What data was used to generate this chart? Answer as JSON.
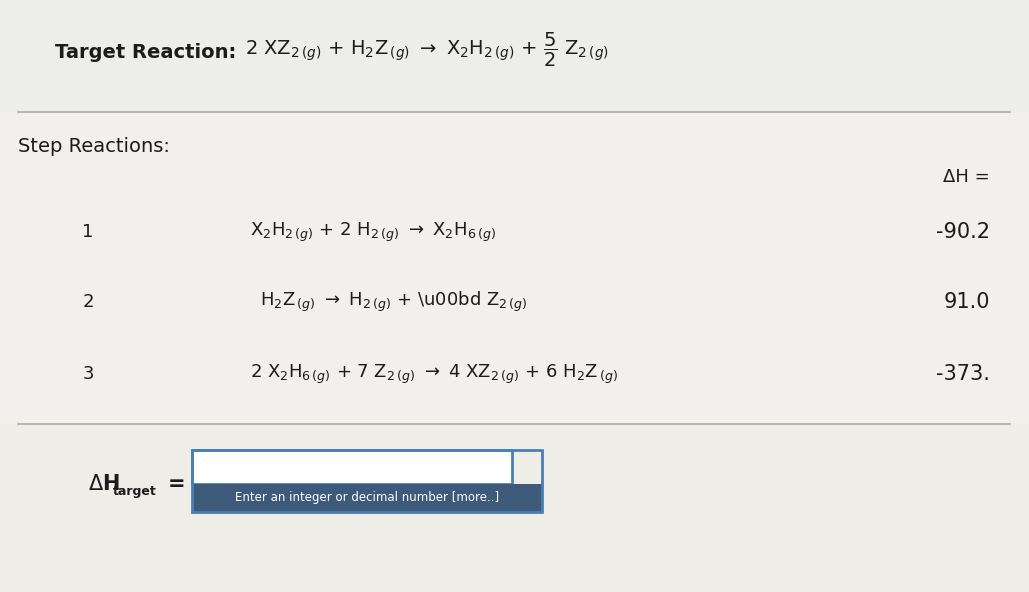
{
  "bg_color": "#e8e7e0",
  "panel_color": "#f0eeea",
  "title_label": "Target Reaction:",
  "step_label": "Step Reactions:",
  "dh_label": "ΔH =",
  "steps": [
    {
      "num": "1",
      "dh": "-90.2"
    },
    {
      "num": "2",
      "dh": "91.0"
    },
    {
      "num": "3",
      "dh": "-373."
    }
  ],
  "dh_target_label": "ΔH",
  "dh_target_sub": "target",
  "dh_target_eq": " =",
  "input_placeholder": "Enter an integer or decimal number [more..]",
  "text_color": "#1c1c1c",
  "line_color": "#aaaaaa",
  "box_border_color": "#4a7fb5",
  "box_fill_color": "#ffffff",
  "tooltip_bg": "#3d5a7a",
  "tooltip_text": "#ffffff",
  "diag_color": "#c8c7c0",
  "title_fontsize": 14,
  "body_fontsize": 13,
  "dh_fontsize": 15
}
